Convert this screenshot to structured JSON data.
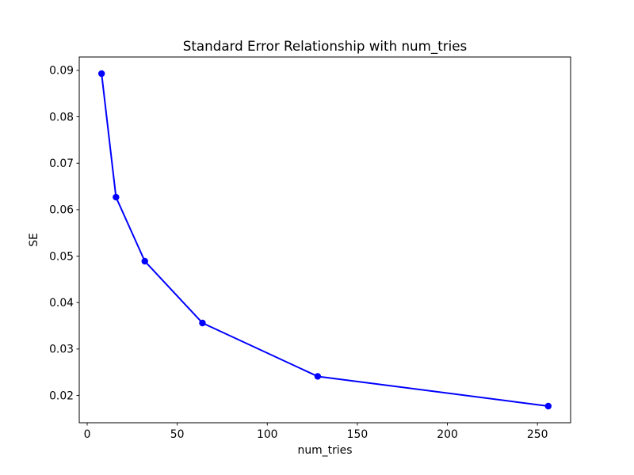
{
  "figure": {
    "background_color": "#ffffff"
  },
  "chart_data": {
    "type": "line",
    "title": "Standard Error Relationship with num_tries",
    "xlabel": "num_tries",
    "ylabel": "SE",
    "series": [
      {
        "x": [
          8,
          16,
          32,
          64,
          128,
          256
        ],
        "y": [
          0.0893,
          0.0627,
          0.0489,
          0.0356,
          0.0241,
          0.0177
        ],
        "color": "#0000ff",
        "marker": "circle",
        "line_style": "solid"
      }
    ],
    "xlim": [
      -4.4,
      268.4
    ],
    "ylim": [
      0.01412,
      0.09288
    ],
    "xticks": {
      "values": [
        0,
        50,
        100,
        150,
        200,
        250
      ],
      "labels": [
        "0",
        "50",
        "100",
        "150",
        "200",
        "250"
      ]
    },
    "yticks": {
      "values": [
        0.02,
        0.03,
        0.04,
        0.05,
        0.06,
        0.07,
        0.08,
        0.09
      ],
      "labels": [
        "0.02",
        "0.03",
        "0.04",
        "0.05",
        "0.06",
        "0.07",
        "0.08",
        "0.09"
      ]
    },
    "grid": false,
    "legend": "none",
    "axes_color": "#000000",
    "text_color": "#000000"
  }
}
